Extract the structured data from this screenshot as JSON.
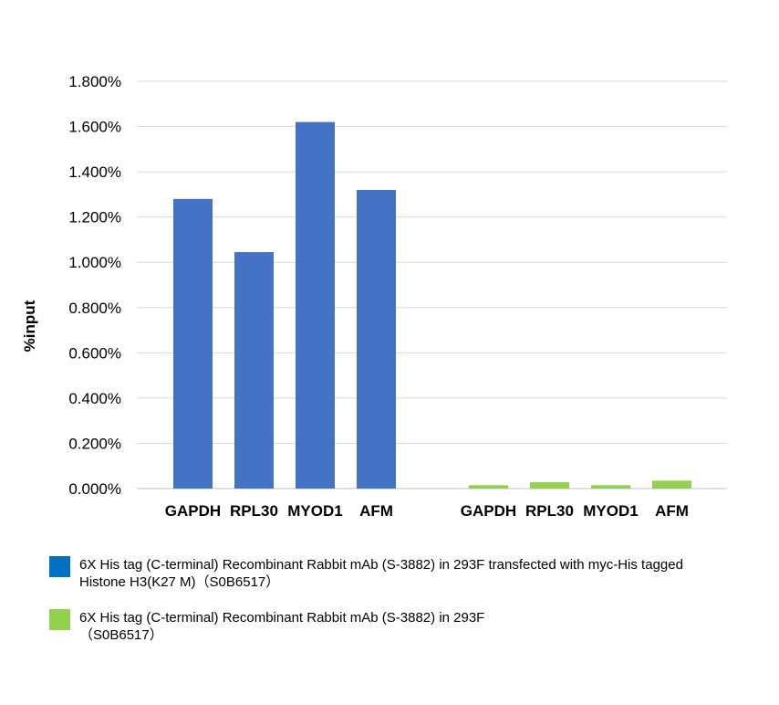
{
  "chart_data": {
    "type": "bar",
    "ylabel": "%input",
    "xlabel": "",
    "title": "",
    "ylim": [
      0,
      1.8
    ],
    "yticks": [
      "0.000%",
      "0.200%",
      "0.400%",
      "0.600%",
      "0.800%",
      "1.000%",
      "1.200%",
      "1.400%",
      "1.600%",
      "1.800%"
    ],
    "grid": true,
    "legend_position": "bottom",
    "groups": [
      {
        "series_index": 0,
        "categories": [
          "GAPDH",
          "RPL30",
          "MYOD1",
          "AFM"
        ],
        "values": [
          1.28,
          1.045,
          1.62,
          1.32
        ]
      },
      {
        "series_index": 1,
        "categories": [
          "GAPDH",
          "RPL30",
          "MYOD1",
          "AFM"
        ],
        "values": [
          0.015,
          0.028,
          0.015,
          0.035
        ]
      }
    ],
    "series": [
      {
        "name": "6X His tag (C-terminal) Recombinant Rabbit mAb (S-3882)  in 293F transfected with myc-His tagged\nHistone H3(K27 M)（S0B6517）",
        "bar_color": "#4472C4",
        "legend_color": "#0070C0"
      },
      {
        "name": "6X His tag (C-terminal) Recombinant Rabbit mAb (S-3882)  in 293F\n（S0B6517）",
        "bar_color": "#92D050",
        "legend_color": "#92D050"
      }
    ]
  }
}
